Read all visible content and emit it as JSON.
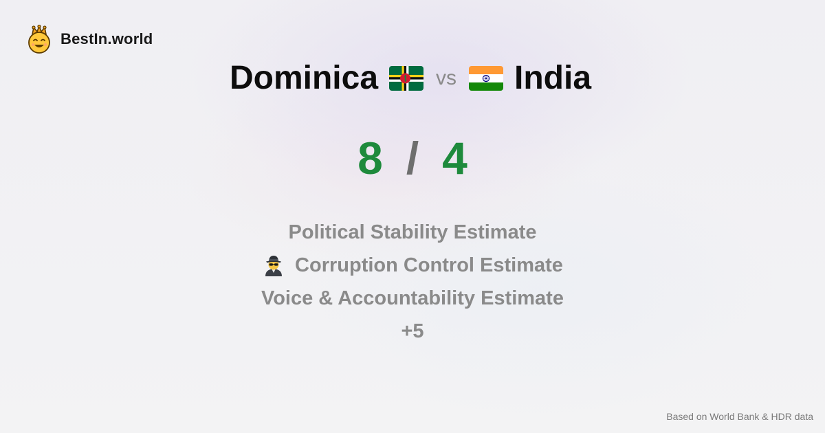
{
  "brand": {
    "name": "BestIn.world",
    "logo_icon": "crown-smiley-icon"
  },
  "comparison": {
    "left_country": "Dominica",
    "left_flag_icon": "dominica-flag-icon",
    "vs": "vs",
    "right_country": "India",
    "right_flag_icon": "india-flag-icon"
  },
  "score": {
    "left": "8",
    "separator": "/",
    "right": "4",
    "color": "#1e8a3c"
  },
  "metrics": [
    {
      "label": "Political Stability Estimate",
      "icon": ""
    },
    {
      "label": "Corruption Control Estimate",
      "icon": "spy-detective-icon"
    },
    {
      "label": "Voice & Accountability Estimate",
      "icon": ""
    },
    {
      "label": "+5",
      "icon": ""
    }
  ],
  "footer": {
    "source": "Based on World Bank & HDR data"
  }
}
